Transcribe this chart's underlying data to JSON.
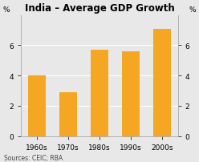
{
  "title": "India – Average GDP Growth",
  "categories": [
    "1960s",
    "1970s",
    "1980s",
    "1990s",
    "2000s"
  ],
  "values": [
    4.0,
    2.9,
    5.7,
    5.6,
    7.1
  ],
  "bar_color": "#F5A623",
  "ylim": [
    0,
    8
  ],
  "yticks": [
    0,
    2,
    4,
    6
  ],
  "ylabel_left": "%",
  "ylabel_right": "%",
  "source_text": "Sources: CEIC; RBA",
  "background_color": "#e8e8e8",
  "grid_color": "#ffffff",
  "title_fontsize": 8.5,
  "tick_fontsize": 6.5,
  "source_fontsize": 5.5,
  "bar_width": 0.55
}
